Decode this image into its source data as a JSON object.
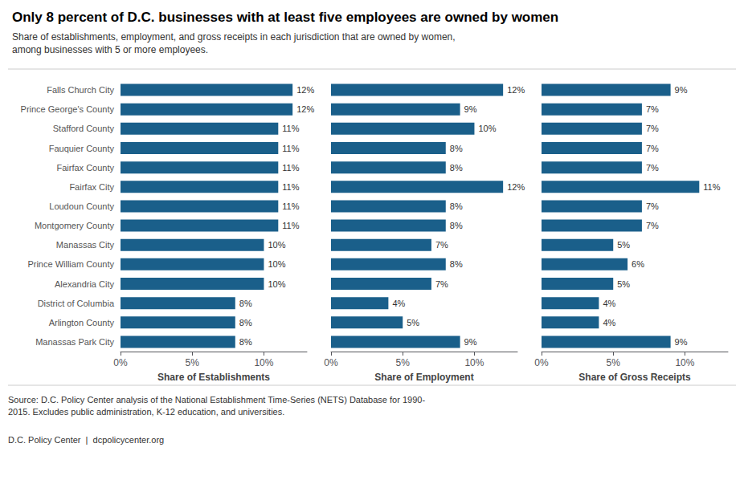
{
  "title": "Only 8 percent of D.C. businesses with at least five employees are owned by women",
  "subtitle": "Share of establishments, employment, and gross receipts in each jurisdiction that are owned by women,\namong businesses with 5 or more employees.",
  "annotations": [
    "Source: D.C. Policy Center analysis of the National Establishment Time-Series (NETS) Database for 1990-\n2015. Excludes public administration, K-12 education, and universities.",
    "D.C. Policy Center  |  dcpolicycenter.org"
  ],
  "chart_data": [
    {
      "type": "bar",
      "orientation": "horizontal",
      "xlabel": "Share of Establishments",
      "categories": [
        "Falls Church City",
        "Prince George's County",
        "Stafford County",
        "Fauquier County",
        "Fairfax County",
        "Fairfax City",
        "Loudoun County",
        "Montgomery County",
        "Manassas City",
        "Prince William County",
        "Alexandria City",
        "District of Columbia",
        "Arlington County",
        "Manassas Park City"
      ],
      "values": [
        12,
        12,
        11,
        11,
        11,
        11,
        11,
        11,
        10,
        10,
        10,
        8,
        8,
        8
      ],
      "value_labels": [
        "12%",
        "12%",
        "11%",
        "11%",
        "11%",
        "11%",
        "11%",
        "11%",
        "10%",
        "10%",
        "10%",
        "8%",
        "8%",
        "8%"
      ],
      "color": "#1a5f8a",
      "xlim": [
        0,
        13
      ],
      "xticks": [
        {
          "value": 0,
          "label": "0%"
        },
        {
          "value": 5,
          "label": "5%"
        },
        {
          "value": 10,
          "label": "10%"
        }
      ],
      "grid": false,
      "data_labels": true
    },
    {
      "type": "bar",
      "orientation": "horizontal",
      "xlabel": "Share of Employment",
      "categories": [
        "Falls Church City",
        "Prince George's County",
        "Stafford County",
        "Fauquier County",
        "Fairfax County",
        "Fairfax City",
        "Loudoun County",
        "Montgomery County",
        "Manassas City",
        "Prince William County",
        "Alexandria City",
        "District of Columbia",
        "Arlington County",
        "Manassas Park City"
      ],
      "values": [
        12,
        9,
        10,
        8,
        8,
        12,
        8,
        8,
        7,
        8,
        7,
        4,
        5,
        9
      ],
      "value_labels": [
        "12%",
        "9%",
        "10%",
        "8%",
        "8%",
        "12%",
        "8%",
        "8%",
        "7%",
        "8%",
        "7%",
        "4%",
        "5%",
        "9%"
      ],
      "color": "#1a5f8a",
      "xlim": [
        0,
        13
      ],
      "xticks": [
        {
          "value": 0,
          "label": "0%"
        },
        {
          "value": 5,
          "label": "5%"
        },
        {
          "value": 10,
          "label": "10%"
        }
      ],
      "grid": false,
      "data_labels": true,
      "tick_labels": "x"
    },
    {
      "type": "bar",
      "orientation": "horizontal",
      "xlabel": "Share of Gross Receipts",
      "categories": [
        "Falls Church City",
        "Prince George's County",
        "Stafford County",
        "Fauquier County",
        "Fairfax County",
        "Fairfax City",
        "Loudoun County",
        "Montgomery County",
        "Manassas City",
        "Prince William County",
        "Alexandria City",
        "District of Columbia",
        "Arlington County",
        "Manassas Park City"
      ],
      "values": [
        9,
        7,
        7,
        7,
        7,
        11,
        7,
        7,
        5,
        6,
        5,
        4,
        4,
        9
      ],
      "value_labels": [
        "9%",
        "7%",
        "7%",
        "7%",
        "7%",
        "11%",
        "7%",
        "7%",
        "5%",
        "6%",
        "5%",
        "4%",
        "4%",
        "9%"
      ],
      "color": "#1a5f8a",
      "xlim": [
        0,
        13
      ],
      "xticks": [
        {
          "value": 0,
          "label": "0%"
        },
        {
          "value": 5,
          "label": "5%"
        },
        {
          "value": 10,
          "label": "10%"
        }
      ],
      "grid": false,
      "data_labels": true,
      "tick_labels": "x"
    }
  ]
}
